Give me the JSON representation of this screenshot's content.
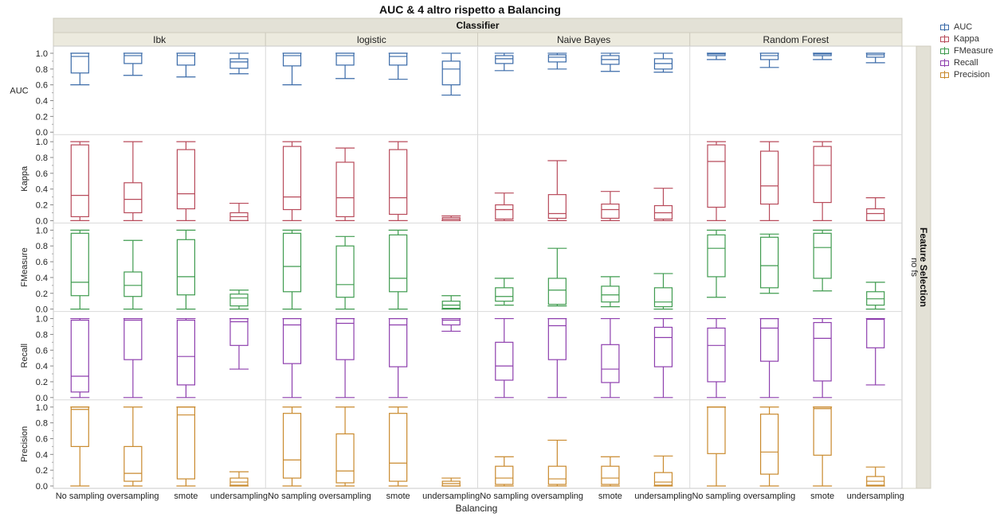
{
  "chart_data": {
    "type": "boxplot",
    "title": "AUC & 4 altro rispetto a Balancing",
    "facet_column_title": "Classifier",
    "facet_row_title": "Feature Selection",
    "facet_row_value": "no fs",
    "xlabel": "Balancing",
    "classifiers": [
      "Ibk",
      "logistic",
      "Naive Bayes",
      "Random Forest"
    ],
    "categories": [
      "No sampling",
      "oversampling",
      "smote",
      "undersampling"
    ],
    "y_ticks": [
      "0.0",
      "0.2",
      "0.4",
      "0.6",
      "0.8",
      "1.0"
    ],
    "ylim": [
      0,
      1.05
    ],
    "legend_position": "top-right",
    "series": [
      {
        "name": "AUC",
        "color": "#3a6aa8",
        "boxes": [
          [
            [
              0.6,
              0.75,
              0.96,
              1.0,
              1.0
            ],
            [
              0.72,
              0.87,
              0.97,
              1.0,
              1.0
            ],
            [
              0.7,
              0.85,
              0.97,
              1.0,
              1.0
            ],
            [
              0.74,
              0.81,
              0.89,
              0.93,
              1.0
            ]
          ],
          [
            [
              0.6,
              0.84,
              0.97,
              1.0,
              1.0
            ],
            [
              0.68,
              0.85,
              0.97,
              1.0,
              1.0
            ],
            [
              0.67,
              0.85,
              0.96,
              1.0,
              1.0
            ],
            [
              0.47,
              0.6,
              0.8,
              0.9,
              1.0
            ]
          ],
          [
            [
              0.78,
              0.87,
              0.93,
              0.97,
              1.0
            ],
            [
              0.8,
              0.89,
              0.95,
              0.98,
              1.0
            ],
            [
              0.77,
              0.86,
              0.92,
              0.97,
              1.0
            ],
            [
              0.76,
              0.8,
              0.87,
              0.93,
              1.0
            ]
          ],
          [
            [
              0.92,
              0.97,
              0.99,
              1.0,
              1.0
            ],
            [
              0.82,
              0.92,
              0.97,
              1.0,
              1.0
            ],
            [
              0.92,
              0.97,
              0.99,
              1.0,
              1.0
            ],
            [
              0.88,
              0.95,
              0.98,
              1.0,
              1.0
            ]
          ]
        ]
      },
      {
        "name": "Kappa",
        "color": "#b84b5b",
        "boxes": [
          [
            [
              0.0,
              0.05,
              0.32,
              0.96,
              1.0
            ],
            [
              0.0,
              0.1,
              0.27,
              0.48,
              1.0
            ],
            [
              0.0,
              0.15,
              0.34,
              0.9,
              1.0
            ],
            [
              0.0,
              0.0,
              0.05,
              0.1,
              0.22
            ]
          ],
          [
            [
              0.0,
              0.14,
              0.3,
              0.94,
              1.0
            ],
            [
              0.0,
              0.05,
              0.29,
              0.74,
              0.92
            ],
            [
              0.0,
              0.08,
              0.29,
              0.9,
              1.0
            ],
            [
              0.0,
              0.0,
              0.02,
              0.04,
              0.06
            ]
          ],
          [
            [
              0.0,
              0.02,
              0.14,
              0.2,
              0.35
            ],
            [
              0.0,
              0.03,
              0.09,
              0.33,
              0.76
            ],
            [
              0.0,
              0.03,
              0.14,
              0.21,
              0.37
            ],
            [
              0.0,
              0.02,
              0.1,
              0.19,
              0.41
            ]
          ],
          [
            [
              0.0,
              0.17,
              0.75,
              0.96,
              1.0
            ],
            [
              0.0,
              0.21,
              0.44,
              0.88,
              1.0
            ],
            [
              0.0,
              0.23,
              0.7,
              0.94,
              1.0
            ],
            [
              0.0,
              0.0,
              0.09,
              0.15,
              0.29
            ]
          ]
        ]
      },
      {
        "name": "FMeasure",
        "color": "#3f9b4f",
        "boxes": [
          [
            [
              0.0,
              0.17,
              0.34,
              0.96,
              1.0
            ],
            [
              0.0,
              0.16,
              0.3,
              0.47,
              0.87
            ],
            [
              0.0,
              0.18,
              0.41,
              0.88,
              1.0
            ],
            [
              0.0,
              0.04,
              0.14,
              0.19,
              0.24
            ]
          ],
          [
            [
              0.0,
              0.22,
              0.54,
              0.96,
              1.0
            ],
            [
              0.0,
              0.15,
              0.31,
              0.8,
              0.92
            ],
            [
              0.0,
              0.22,
              0.39,
              0.94,
              1.0
            ],
            [
              0.0,
              0.01,
              0.05,
              0.1,
              0.17
            ]
          ],
          [
            [
              0.05,
              0.1,
              0.16,
              0.27,
              0.39
            ],
            [
              0.04,
              0.06,
              0.24,
              0.39,
              0.77
            ],
            [
              0.03,
              0.09,
              0.18,
              0.29,
              0.41
            ],
            [
              0.0,
              0.03,
              0.09,
              0.27,
              0.45
            ]
          ],
          [
            [
              0.15,
              0.41,
              0.77,
              0.94,
              1.0
            ],
            [
              0.2,
              0.27,
              0.55,
              0.91,
              0.95
            ],
            [
              0.23,
              0.39,
              0.78,
              0.96,
              1.0
            ],
            [
              0.0,
              0.05,
              0.13,
              0.22,
              0.34
            ]
          ]
        ]
      },
      {
        "name": "Recall",
        "color": "#8e3fae",
        "boxes": [
          [
            [
              0.0,
              0.07,
              0.27,
              0.98,
              1.0
            ],
            [
              0.0,
              0.48,
              0.98,
              1.0,
              1.0
            ],
            [
              0.0,
              0.16,
              0.52,
              0.98,
              1.0
            ],
            [
              0.36,
              0.66,
              0.96,
              1.0,
              1.0
            ]
          ],
          [
            [
              0.0,
              0.43,
              0.92,
              1.0,
              1.0
            ],
            [
              0.0,
              0.48,
              0.94,
              1.0,
              1.0
            ],
            [
              0.0,
              0.39,
              0.92,
              1.0,
              1.0
            ],
            [
              0.84,
              0.92,
              0.98,
              1.0,
              1.0
            ]
          ],
          [
            [
              0.0,
              0.22,
              0.4,
              0.7,
              1.0
            ],
            [
              0.0,
              0.48,
              0.91,
              1.0,
              1.0
            ],
            [
              0.0,
              0.19,
              0.36,
              0.67,
              1.0
            ],
            [
              0.0,
              0.39,
              0.76,
              0.89,
              1.0
            ]
          ],
          [
            [
              0.0,
              0.2,
              0.66,
              0.88,
              1.0
            ],
            [
              0.0,
              0.46,
              0.88,
              1.0,
              1.0
            ],
            [
              0.0,
              0.21,
              0.75,
              0.95,
              1.0
            ],
            [
              0.16,
              0.63,
              0.99,
              1.0,
              1.0
            ]
          ]
        ]
      },
      {
        "name": "Precision",
        "color": "#c98a2e",
        "boxes": [
          [
            [
              0.0,
              0.5,
              0.97,
              1.0,
              1.0
            ],
            [
              0.0,
              0.06,
              0.16,
              0.5,
              1.0
            ],
            [
              0.0,
              0.09,
              0.9,
              1.0,
              1.0
            ],
            [
              0.0,
              0.01,
              0.05,
              0.1,
              0.18
            ]
          ],
          [
            [
              0.0,
              0.1,
              0.33,
              0.92,
              1.0
            ],
            [
              0.0,
              0.04,
              0.19,
              0.66,
              1.0
            ],
            [
              0.0,
              0.06,
              0.29,
              0.92,
              1.0
            ],
            [
              0.0,
              0.0,
              0.03,
              0.06,
              0.1
            ]
          ],
          [
            [
              0.0,
              0.02,
              0.1,
              0.25,
              0.37
            ],
            [
              0.0,
              0.02,
              0.09,
              0.25,
              0.58
            ],
            [
              0.0,
              0.02,
              0.1,
              0.25,
              0.37
            ],
            [
              0.0,
              0.01,
              0.05,
              0.17,
              0.38
            ]
          ],
          [
            [
              0.0,
              0.41,
              1.0,
              1.0,
              1.0
            ],
            [
              0.0,
              0.15,
              0.43,
              0.91,
              1.0
            ],
            [
              0.0,
              0.39,
              0.98,
              1.0,
              1.0
            ],
            [
              0.0,
              0.01,
              0.06,
              0.12,
              0.24
            ]
          ]
        ]
      }
    ]
  }
}
